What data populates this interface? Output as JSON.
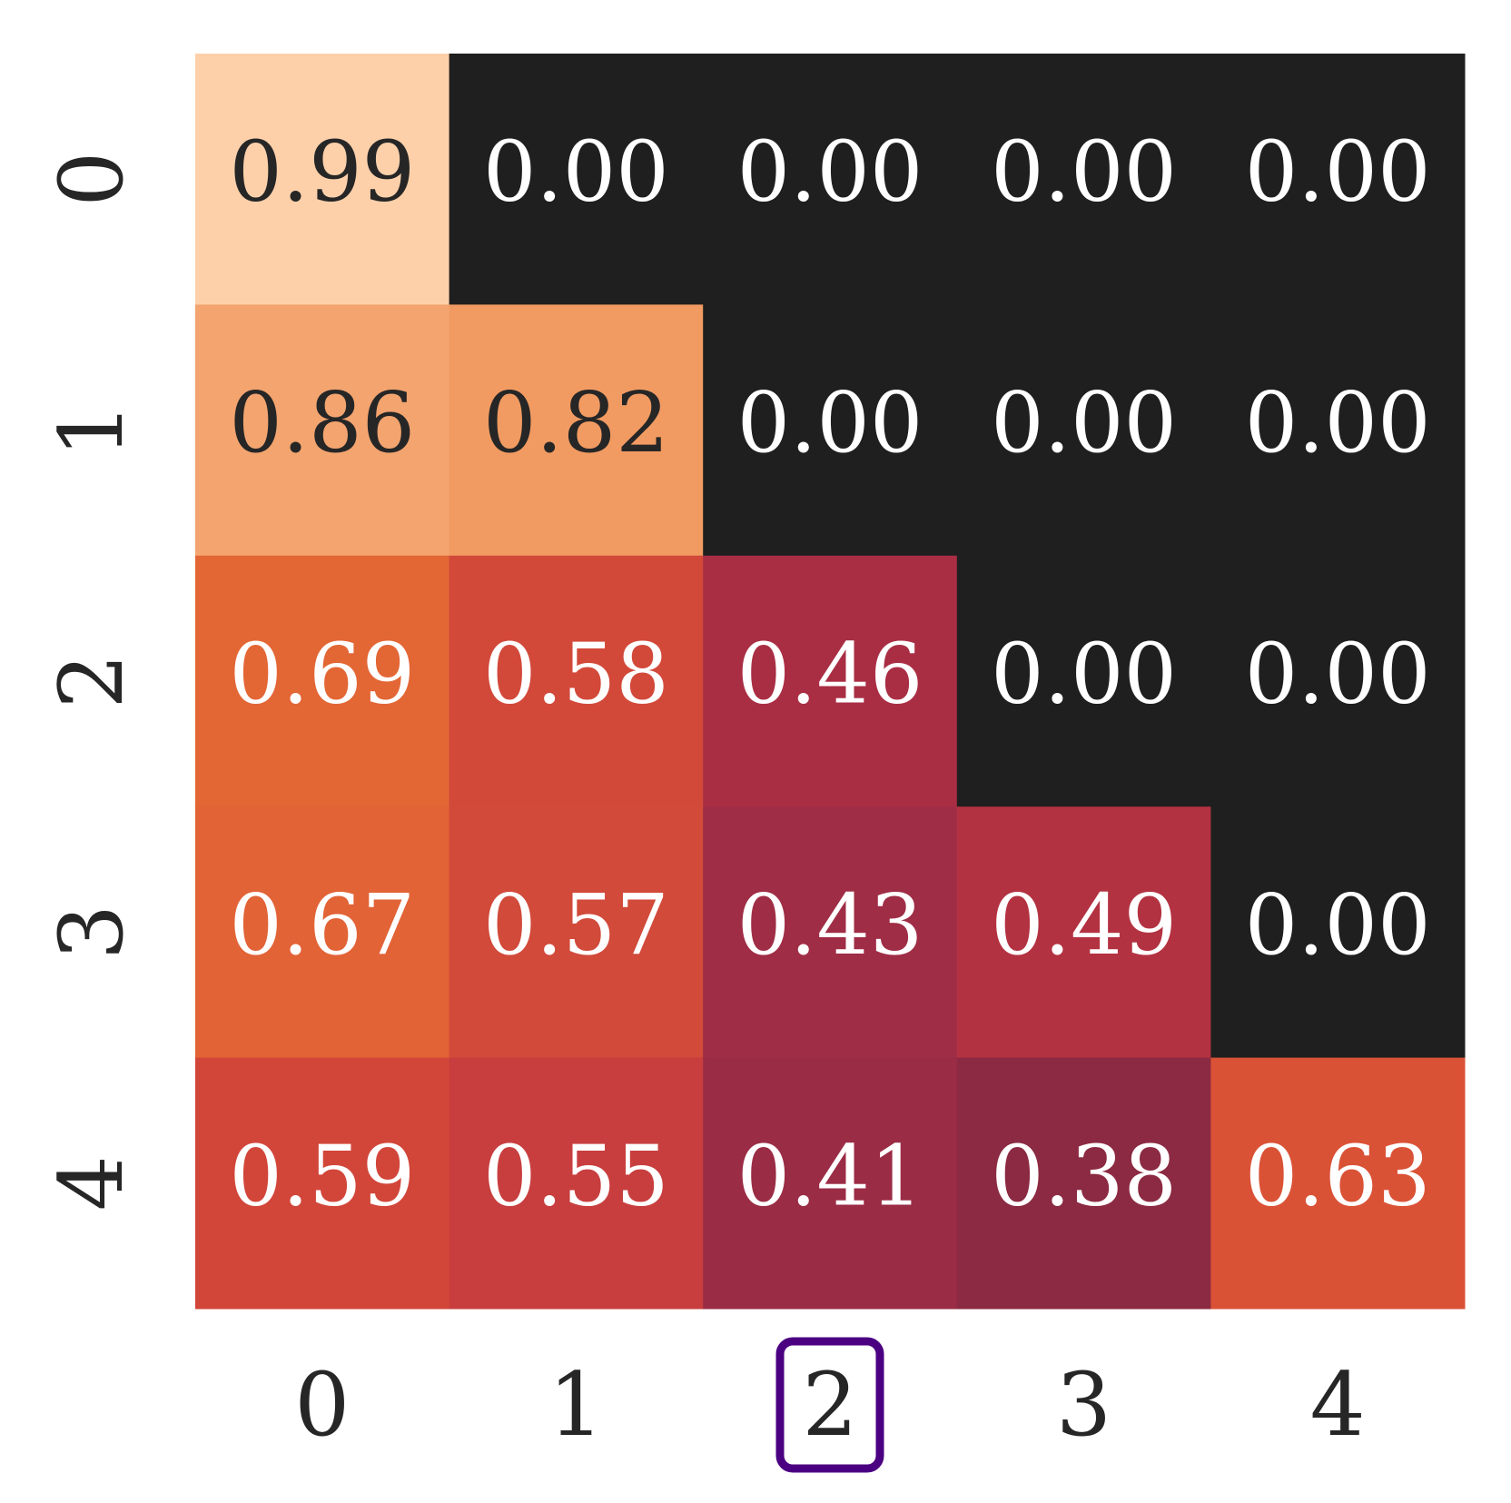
{
  "chart_data": {
    "type": "heatmap",
    "x_categories": [
      "0",
      "1",
      "2",
      "3",
      "4"
    ],
    "y_categories": [
      "0",
      "1",
      "2",
      "3",
      "4"
    ],
    "values": [
      [
        0.99,
        0.0,
        0.0,
        0.0,
        0.0
      ],
      [
        0.86,
        0.82,
        0.0,
        0.0,
        0.0
      ],
      [
        0.69,
        0.58,
        0.46,
        0.0,
        0.0
      ],
      [
        0.67,
        0.57,
        0.43,
        0.49,
        0.0
      ],
      [
        0.59,
        0.55,
        0.41,
        0.38,
        0.63
      ]
    ],
    "value_labels": [
      [
        "0.99",
        "0.00",
        "0.00",
        "0.00",
        "0.00"
      ],
      [
        "0.86",
        "0.82",
        "0.00",
        "0.00",
        "0.00"
      ],
      [
        "0.69",
        "0.58",
        "0.46",
        "0.00",
        "0.00"
      ],
      [
        "0.67",
        "0.57",
        "0.43",
        "0.49",
        "0.00"
      ],
      [
        "0.59",
        "0.55",
        "0.41",
        "0.38",
        "0.63"
      ]
    ],
    "colors": [
      [
        "#fdd0aa",
        "#1f1f1f",
        "#1f1f1f",
        "#1f1f1f",
        "#1f1f1f"
      ],
      [
        "#f3a46f",
        "#f19b62",
        "#1f1f1f",
        "#1f1f1f",
        "#1f1f1f"
      ],
      [
        "#e36635",
        "#d2493a",
        "#a92e44",
        "#1f1f1f",
        "#1f1f1f"
      ],
      [
        "#e26336",
        "#d14a3a",
        "#9f2d45",
        "#b33241",
        "#1f1f1f"
      ],
      [
        "#d2463a",
        "#c83e3e",
        "#9a2c45",
        "#8b2a42",
        "#da5236"
      ]
    ],
    "highlight": {
      "axis": "x",
      "index": 2,
      "color": "#4b0082"
    }
  }
}
